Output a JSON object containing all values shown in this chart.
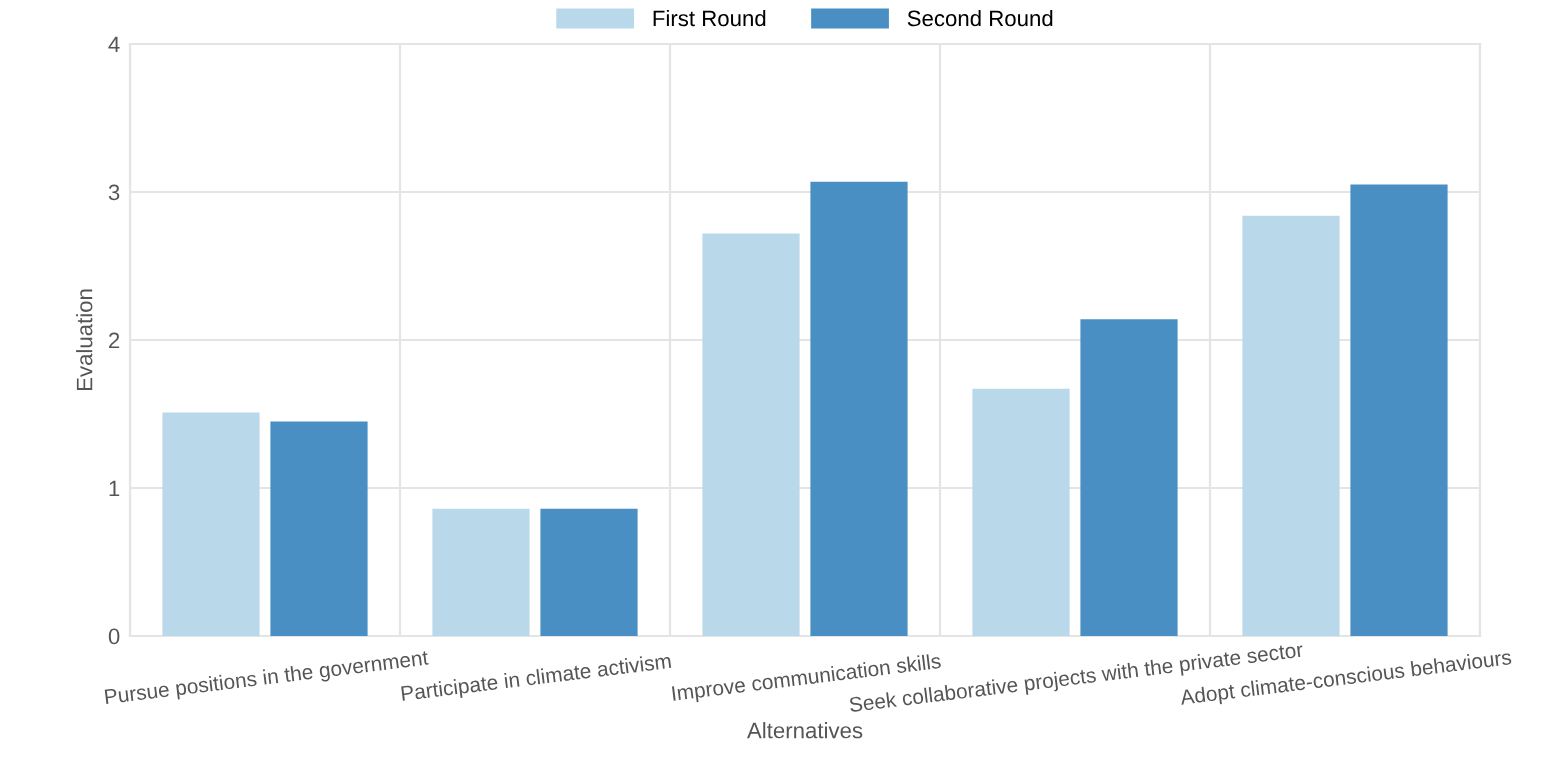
{
  "chart_data": {
    "type": "bar",
    "xlabel": "Alternatives",
    "ylabel": "Evaluation",
    "categories": [
      "Pursue positions in the government",
      "Participate in climate activism",
      "Improve communication skills",
      "Seek collaborative projects with the private sector",
      "Adopt climate-conscious behaviours"
    ],
    "series": [
      {
        "name": "First Round",
        "color": "#b9d9ea",
        "values": [
          1.51,
          0.86,
          2.72,
          1.67,
          2.84
        ]
      },
      {
        "name": "Second Round",
        "color": "#4a8fc3",
        "values": [
          1.45,
          0.86,
          3.07,
          2.14,
          3.05
        ]
      }
    ],
    "ylim": [
      0,
      4
    ],
    "yticks": [
      0,
      1,
      2,
      3,
      4
    ],
    "grid": true,
    "legend": "top"
  }
}
